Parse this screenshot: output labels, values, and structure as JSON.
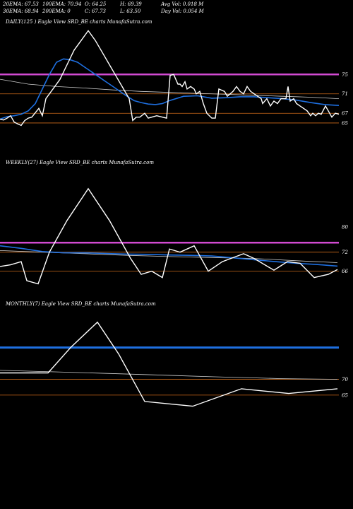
{
  "header": {
    "row1": [
      "20EMA: 67.53",
      "100EMA: 70.94",
      "O: 64.25",
      "H: 69.39",
      "Avg Vol: 0.018  M"
    ],
    "row2": [
      "30EMA: 68.94",
      "200EMA: 0",
      "C: 67.73",
      "L: 63.50",
      "Day Vol: 0.054  M"
    ]
  },
  "colors": {
    "price": "#ffffff",
    "ema_blue": "#1e6fe0",
    "ema_grey": "#cfcfcf",
    "level_magenta": "#d14ad1",
    "level_orange": "#cc6a1a",
    "background": "#000000"
  },
  "panels": [
    {
      "label": "DAILY(125                                  ) Eagle  View  SRD_BE charts MunafaSutra.com",
      "yticks": [
        "75",
        "71",
        "67",
        "65"
      ]
    },
    {
      "label": "WEEKLY(27) Eagle  View  SRD_BE charts MunafaSutra.com",
      "yticks": [
        "80",
        "72",
        "66"
      ]
    },
    {
      "label": "MONTHLY(7) Eagle  View  SRD_BE charts MunafaSutra.com",
      "yticks": [
        "70",
        "65"
      ]
    }
  ],
  "chart_data": [
    {
      "type": "line",
      "timeframe": "daily",
      "ylim": [
        61.5,
        84.5
      ],
      "levels": {
        "magenta": 75,
        "orange": [
          71,
          67,
          65
        ]
      },
      "price": [
        [
          0,
          65.8
        ],
        [
          5,
          65.6
        ],
        [
          10,
          66
        ],
        [
          15,
          66.5
        ],
        [
          20,
          65.2
        ],
        [
          25,
          64.8
        ],
        [
          30,
          64.5
        ],
        [
          35,
          65.5
        ],
        [
          40,
          66
        ],
        [
          45,
          66.2
        ],
        [
          55,
          68
        ],
        [
          60,
          66.5
        ],
        [
          65,
          70
        ],
        [
          75,
          72
        ],
        [
          85,
          74
        ],
        [
          95,
          77
        ],
        [
          105,
          80
        ],
        [
          115,
          82
        ],
        [
          125,
          84
        ],
        [
          135,
          82
        ],
        [
          145,
          79.5
        ],
        [
          155,
          77
        ],
        [
          165,
          74.5
        ],
        [
          175,
          72
        ],
        [
          183,
          70
        ],
        [
          188,
          65.5
        ],
        [
          193,
          66.2
        ],
        [
          198,
          66.2
        ],
        [
          205,
          67
        ],
        [
          210,
          66
        ],
        [
          215,
          66.2
        ],
        [
          222,
          66.5
        ],
        [
          230,
          66.2
        ],
        [
          236,
          66
        ],
        [
          241,
          74.8
        ],
        [
          246,
          75
        ],
        [
          252,
          73
        ],
        [
          255,
          73
        ],
        [
          258,
          72.5
        ],
        [
          262,
          73.5
        ],
        [
          265,
          72
        ],
        [
          270,
          72.5
        ],
        [
          275,
          72
        ],
        [
          278,
          71
        ],
        [
          283,
          71.5
        ],
        [
          288,
          69
        ],
        [
          293,
          67
        ],
        [
          300,
          66
        ],
        [
          305,
          66
        ],
        [
          310,
          72
        ],
        [
          318,
          71.5
        ],
        [
          322,
          70.5
        ],
        [
          330,
          71.5
        ],
        [
          335,
          72.5
        ],
        [
          340,
          71.5
        ],
        [
          345,
          71
        ],
        [
          350,
          72.5
        ],
        [
          355,
          71.5
        ],
        [
          360,
          71
        ],
        [
          365,
          70.5
        ],
        [
          370,
          70
        ],
        [
          372,
          69
        ],
        [
          378,
          70
        ],
        [
          383,
          68.5
        ],
        [
          388,
          69.5
        ],
        [
          393,
          69
        ],
        [
          398,
          70
        ],
        [
          405,
          70
        ],
        [
          408,
          72.5
        ],
        [
          411,
          69.5
        ],
        [
          416,
          70
        ],
        [
          420,
          69
        ],
        [
          425,
          68.5
        ],
        [
          430,
          68
        ],
        [
          435,
          67.5
        ],
        [
          440,
          66.5
        ],
        [
          443,
          67
        ],
        [
          447,
          66.5
        ],
        [
          451,
          67
        ],
        [
          455,
          66.8
        ],
        [
          461,
          68.5
        ],
        [
          465,
          67.5
        ],
        [
          470,
          66.2
        ],
        [
          475,
          67
        ],
        [
          480,
          66.8
        ]
      ],
      "ema_blue": [
        [
          0,
          65.8
        ],
        [
          10,
          66.3
        ],
        [
          20,
          66.5
        ],
        [
          30,
          66.8
        ],
        [
          40,
          67.5
        ],
        [
          50,
          69
        ],
        [
          60,
          72
        ],
        [
          70,
          75
        ],
        [
          80,
          77.5
        ],
        [
          90,
          78.2
        ],
        [
          100,
          78
        ],
        [
          110,
          77.5
        ],
        [
          120,
          76.5
        ],
        [
          130,
          75.5
        ],
        [
          140,
          74.5
        ],
        [
          150,
          73.5
        ],
        [
          160,
          72.5
        ],
        [
          170,
          71.5
        ],
        [
          180,
          70.5
        ],
        [
          190,
          69.6
        ],
        [
          200,
          69.2
        ],
        [
          210,
          68.9
        ],
        [
          220,
          68.8
        ],
        [
          230,
          69
        ],
        [
          240,
          69.6
        ],
        [
          260,
          70.5
        ],
        [
          280,
          70.6
        ],
        [
          300,
          70.1
        ],
        [
          320,
          70.2
        ],
        [
          340,
          70.4
        ],
        [
          360,
          70.4
        ],
        [
          380,
          70.2
        ],
        [
          400,
          70
        ],
        [
          420,
          69.7
        ],
        [
          440,
          69.2
        ],
        [
          460,
          68.8
        ],
        [
          480,
          68.6
        ]
      ],
      "ema_grey": [
        [
          0,
          74
        ],
        [
          40,
          73
        ],
        [
          80,
          72.5
        ],
        [
          120,
          72.2
        ],
        [
          160,
          71.8
        ],
        [
          200,
          71.5
        ],
        [
          240,
          71.3
        ],
        [
          280,
          71.1
        ],
        [
          320,
          70.9
        ],
        [
          360,
          70.7
        ],
        [
          400,
          70.5
        ],
        [
          440,
          70.3
        ],
        [
          480,
          70
        ]
      ]
    },
    {
      "type": "line",
      "timeframe": "weekly",
      "ylim": [
        59,
        98
      ],
      "levels": {
        "magenta": 75,
        "orange": [
          72,
          66
        ]
      },
      "price": [
        [
          0,
          67.5
        ],
        [
          15,
          68
        ],
        [
          30,
          69
        ],
        [
          38,
          63
        ],
        [
          54,
          62
        ],
        [
          70,
          72
        ],
        [
          95,
          82
        ],
        [
          125,
          92
        ],
        [
          155,
          82
        ],
        [
          185,
          70
        ],
        [
          200,
          65
        ],
        [
          215,
          66
        ],
        [
          230,
          64
        ],
        [
          240,
          73
        ],
        [
          255,
          72
        ],
        [
          275,
          74
        ],
        [
          295,
          66
        ],
        [
          315,
          69
        ],
        [
          345,
          71.5
        ],
        [
          360,
          70
        ],
        [
          388,
          66.3
        ],
        [
          407,
          69
        ],
        [
          425,
          68.5
        ],
        [
          445,
          64
        ],
        [
          465,
          65
        ],
        [
          478,
          66.5
        ]
      ],
      "ema_blue": [
        [
          0,
          74
        ],
        [
          30,
          73.2
        ],
        [
          60,
          72.2
        ],
        [
          90,
          71.8
        ],
        [
          120,
          71.8
        ],
        [
          150,
          71.6
        ],
        [
          180,
          71.4
        ],
        [
          210,
          71.3
        ],
        [
          240,
          71.1
        ],
        [
          270,
          71
        ],
        [
          300,
          70.8
        ],
        [
          330,
          70.2
        ],
        [
          360,
          69.6
        ],
        [
          390,
          69
        ],
        [
          420,
          68.5
        ],
        [
          450,
          68.1
        ],
        [
          478,
          67.6
        ]
      ],
      "ema_grey": [
        [
          0,
          72.5
        ],
        [
          60,
          72
        ],
        [
          120,
          71.5
        ],
        [
          180,
          71
        ],
        [
          240,
          70.6
        ],
        [
          300,
          70.3
        ],
        [
          360,
          70
        ],
        [
          420,
          69.3
        ],
        [
          478,
          68.7
        ]
      ]
    },
    {
      "type": "line",
      "timeframe": "monthly",
      "ylim": [
        54.5,
        91.5
      ],
      "levels": {
        "orange": [
          70,
          65
        ],
        "blue": 80
      },
      "price": [
        [
          0,
          72
        ],
        [
          68,
          72
        ],
        [
          100,
          80
        ],
        [
          138,
          88
        ],
        [
          168,
          78
        ],
        [
          205,
          63
        ],
        [
          273,
          61.5
        ],
        [
          342,
          67
        ],
        [
          409,
          65.5
        ],
        [
          478,
          67
        ]
      ],
      "ema_grey": [
        [
          0,
          72.8
        ],
        [
          100,
          72.2
        ],
        [
          200,
          71.5
        ],
        [
          300,
          70.8
        ],
        [
          400,
          70.2
        ],
        [
          478,
          70
        ]
      ]
    }
  ]
}
